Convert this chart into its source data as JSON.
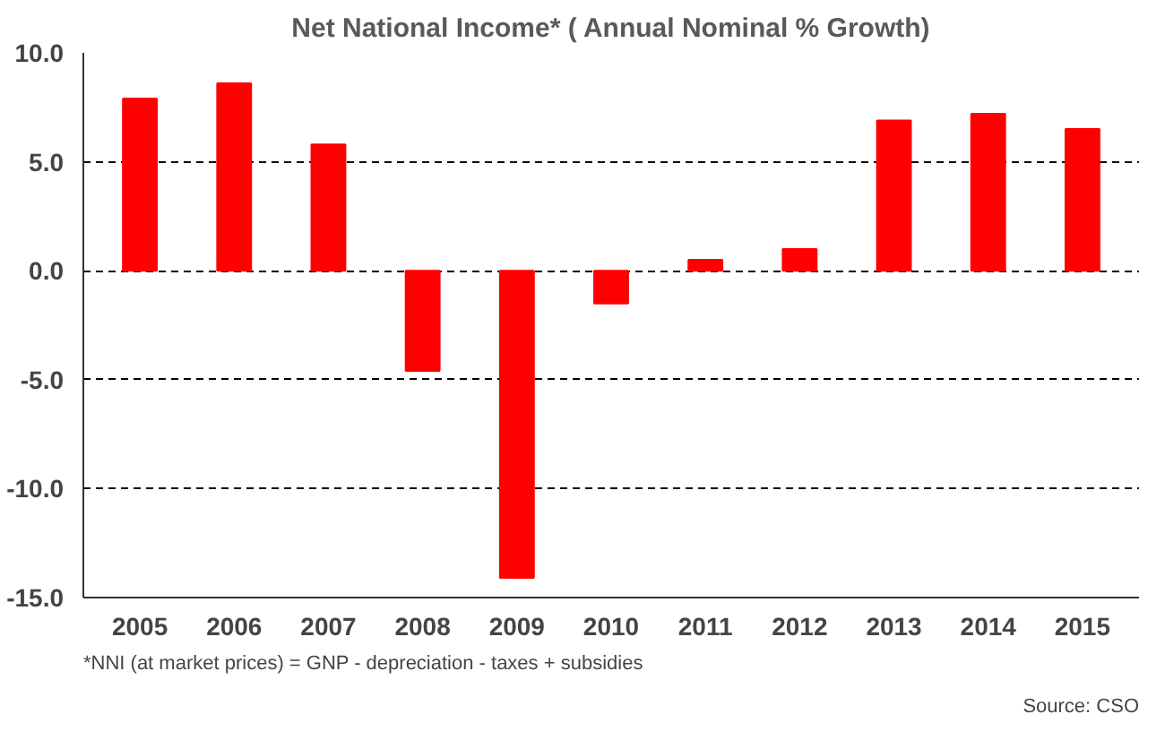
{
  "chart_data": {
    "type": "bar",
    "title": "Net National Income* ( Annual Nominal % Growth)",
    "categories": [
      "2005",
      "2006",
      "2007",
      "2008",
      "2009",
      "2010",
      "2011",
      "2012",
      "2013",
      "2014",
      "2015"
    ],
    "values": [
      7.9,
      8.6,
      5.8,
      -4.6,
      -14.1,
      -1.5,
      0.5,
      1.0,
      6.9,
      7.2,
      6.5
    ],
    "color": "#ff0000",
    "ylim": [
      -15,
      10
    ],
    "yticks": [
      {
        "value": -15,
        "label": "-15.0"
      },
      {
        "value": -10,
        "label": "-10.0"
      },
      {
        "value": -5,
        "label": "-5.0"
      },
      {
        "value": 0,
        "label": "0.0"
      },
      {
        "value": 5,
        "label": "5.0"
      },
      {
        "value": 10,
        "label": "10.0"
      }
    ],
    "grid": "y",
    "annotations": [
      "*NNI (at market prices) = GNP - depreciation - taxes + subsidies",
      "Source: CSO"
    ]
  }
}
